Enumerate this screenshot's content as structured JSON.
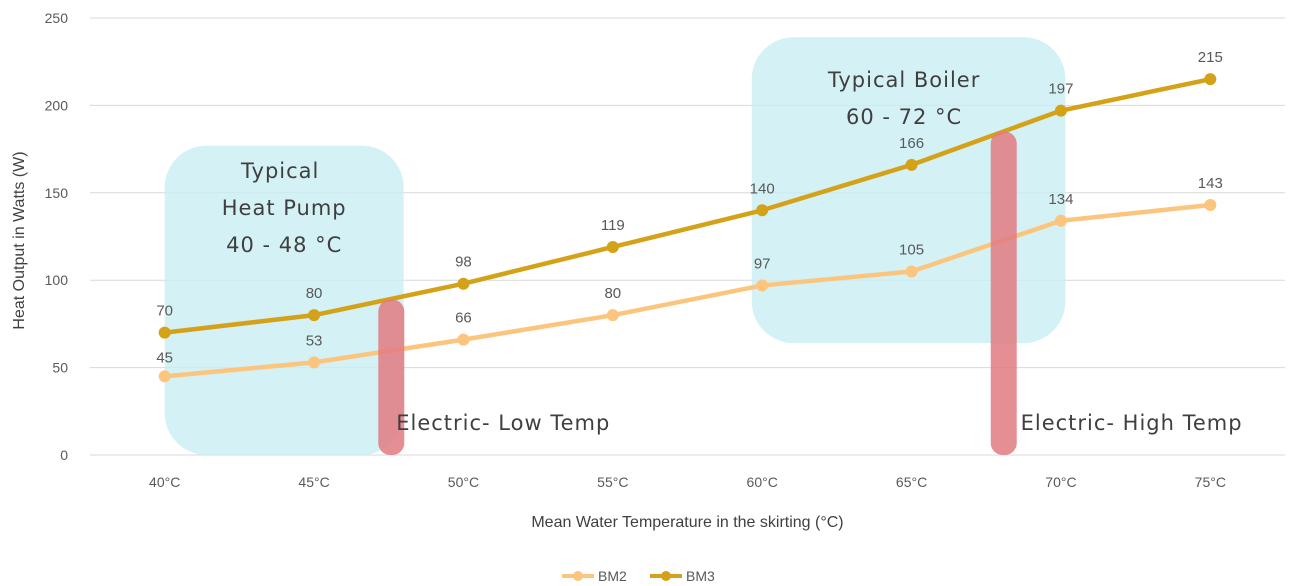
{
  "chart_data": {
    "type": "line",
    "title": "",
    "xlabel": "Mean Water Temperature in the skirting (°C)",
    "ylabel": "Heat Output in Watts (W)",
    "ylim": [
      0,
      250
    ],
    "yticks": [
      "0",
      "50",
      "100",
      "150",
      "200",
      "250"
    ],
    "categories": [
      "40°C",
      "45°C",
      "50°C",
      "55°C",
      "60°C",
      "65°C",
      "70°C",
      "75°C"
    ],
    "series": [
      {
        "name": "BM2",
        "values": [
          45,
          53,
          66,
          80,
          97,
          105,
          134,
          143
        ],
        "color": "#fcc57e"
      },
      {
        "name": "BM3",
        "values": [
          70,
          80,
          98,
          119,
          140,
          166,
          197,
          215
        ],
        "color": "#d4a219"
      }
    ],
    "grid": "horizontal",
    "legend": "bottom",
    "annotations": {
      "heat_pump": {
        "lines": [
          "Typical",
          "Heat Pump",
          "40 - 48 °C"
        ],
        "color": "#c9eef3"
      },
      "boiler": {
        "lines": [
          "Typical Boiler",
          "60 - 72 °C"
        ],
        "color": "#c9eef3"
      },
      "electric_low": {
        "text": "Electric- Low Temp",
        "color": "#e07a80"
      },
      "electric_high": {
        "text": "Electric- High Temp",
        "color": "#e07a80"
      }
    }
  }
}
